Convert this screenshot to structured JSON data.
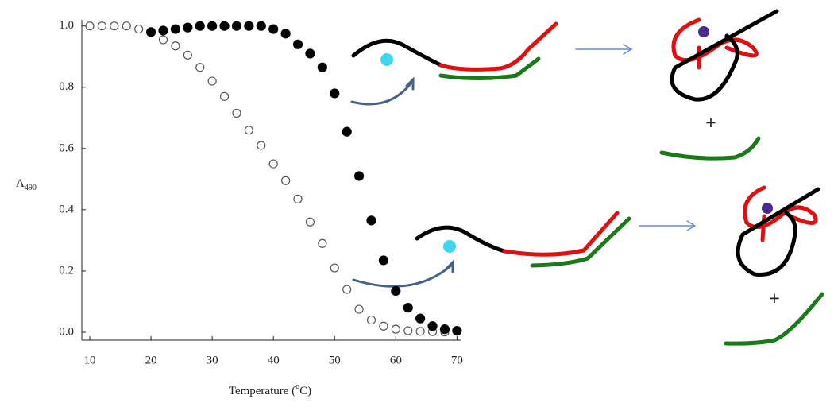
{
  "chart_data": {
    "type": "scatter",
    "xlabel": [
      "Temperature (",
      "o",
      "C)"
    ],
    "ylabel": [
      "A",
      "490"
    ],
    "xlim": [
      8.7,
      70.6
    ],
    "ylim": [
      -0.026,
      1.02
    ],
    "xticks": [
      10,
      20,
      30,
      40,
      50,
      60,
      70
    ],
    "yticks": [
      {
        "value": 0,
        "label": "0.0"
      },
      {
        "value": 0.2,
        "label": "0.2"
      },
      {
        "value": 0.4,
        "label": "0.4"
      },
      {
        "value": 0.6,
        "label": "0.6"
      },
      {
        "value": 0.8,
        "label": "0.8"
      },
      {
        "value": 1,
        "label": "1.0"
      }
    ],
    "series": [
      {
        "marker": "open",
        "color": "#555555",
        "x": [
          10,
          12,
          14,
          16,
          18,
          20,
          22,
          24,
          26,
          28,
          30,
          32,
          34,
          36,
          38,
          40,
          42,
          44,
          46,
          48,
          50,
          52,
          54,
          56,
          58,
          60,
          62,
          64,
          66,
          68,
          70
        ],
        "values": [
          1.0,
          1.0,
          1.0,
          1.0,
          0.99,
          0.98,
          0.955,
          0.935,
          0.905,
          0.865,
          0.82,
          0.77,
          0.715,
          0.66,
          0.61,
          0.55,
          0.495,
          0.435,
          0.36,
          0.29,
          0.21,
          0.14,
          0.075,
          0.04,
          0.02,
          0.01,
          0.005,
          0.003,
          0.002,
          0.001,
          0.003
        ]
      },
      {
        "marker": "filled",
        "color": "#000000",
        "x": [
          20,
          22,
          24,
          26,
          28,
          30,
          32,
          34,
          36,
          38,
          40,
          42,
          44,
          46,
          48,
          50,
          52,
          54,
          56,
          58,
          60,
          62,
          64,
          66,
          68,
          70
        ],
        "values": [
          0.98,
          0.985,
          0.99,
          0.995,
          1.0,
          1.0,
          1.0,
          1.0,
          1.0,
          1.0,
          0.99,
          0.975,
          0.94,
          0.91,
          0.865,
          0.78,
          0.655,
          0.51,
          0.365,
          0.235,
          0.135,
          0.08,
          0.045,
          0.02,
          0.01,
          0.005
        ]
      }
    ],
    "annotations": [
      "+",
      "+"
    ]
  }
}
